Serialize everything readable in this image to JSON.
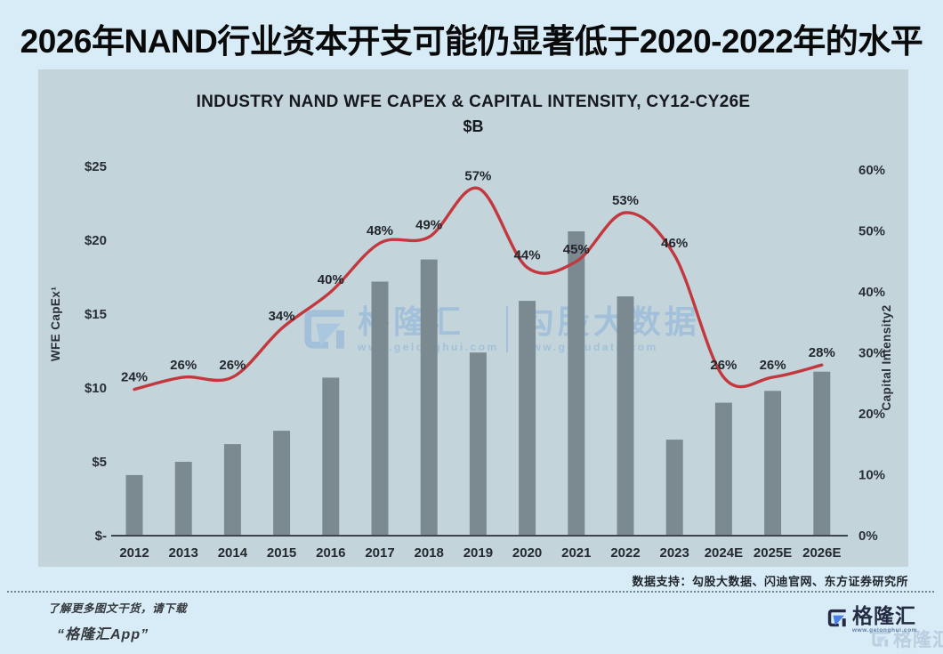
{
  "page": {
    "title": "2026年NAND行业资本开支可能仍显著低于2020-2022年的水平",
    "source_note": "数据支持：勾股大数据、闪迪官网、东方证券研究所",
    "watermark": {
      "brand": "格隆汇",
      "brand_url": "www.gelonghui.com",
      "partner": "勾股大数据",
      "partner_url": "www.gogudata.com"
    },
    "footer": {
      "promo_line1": "了解更多图文干货，请下载",
      "promo_line2": "“格隆汇App”",
      "brand_name": "格隆汇",
      "brand_url": "www.gelonghui.com",
      "ghost_brand_name": "格隆汇"
    }
  },
  "chart_data": {
    "type": "bar",
    "combo": "bar+line",
    "title": "INDUSTRY NAND WFE CAPEX & CAPITAL INTENSITY, CY12-CY26E",
    "subtitle": "$B",
    "categories": [
      "2012",
      "2013",
      "2014",
      "2015",
      "2016",
      "2017",
      "2018",
      "2019",
      "2020",
      "2021",
      "2022",
      "2023",
      "2024E",
      "2025E",
      "2026E"
    ],
    "series": [
      {
        "name": "WFE CapEx¹",
        "type": "bar",
        "axis": "left",
        "unit": "$B",
        "color": "#7b8a90",
        "values": [
          4.1,
          5.0,
          6.2,
          7.1,
          10.7,
          17.2,
          18.7,
          12.4,
          15.9,
          20.6,
          16.2,
          6.5,
          9.0,
          9.8,
          11.1
        ]
      },
      {
        "name": "Capital Intensity2",
        "type": "line",
        "axis": "right",
        "unit": "%",
        "color": "#c2383e",
        "values": [
          24,
          26,
          26,
          34,
          40,
          48,
          49,
          57,
          44,
          45,
          53,
          46,
          26,
          26,
          28
        ],
        "point_labels": [
          "24%",
          "26%",
          "26%",
          "34%",
          "40%",
          "48%",
          "49%",
          "57%",
          "44%",
          "45%",
          "53%",
          "46%",
          "26%",
          "26%",
          "28%"
        ]
      }
    ],
    "left_axis": {
      "title": "WFE CapEx¹",
      "tick_labels": [
        "$25",
        "$20",
        "$15",
        "$10",
        "$5",
        "$-"
      ],
      "tick_values": [
        25,
        20,
        15,
        10,
        5,
        0
      ],
      "range": [
        0,
        25
      ]
    },
    "right_axis": {
      "title": "Capital Intensity2",
      "tick_labels": [
        "60%",
        "50%",
        "40%",
        "30%",
        "20%",
        "10%",
        "0%"
      ],
      "tick_values": [
        60,
        50,
        40,
        30,
        20,
        10,
        0
      ],
      "range": [
        0,
        60
      ]
    },
    "grid": false,
    "legend_position": "none"
  },
  "colors": {
    "page_bg": "#d8ecf8",
    "panel_bg": "#c3d5db",
    "bar": "#7b8a90",
    "line": "#c2383e",
    "axis_line": "#3d464d",
    "title_text": "#0a0a0a",
    "watermark_blue": "#8fb4d8",
    "logo_navy": "#242b42",
    "logo_blue": "#4a7fe8"
  }
}
